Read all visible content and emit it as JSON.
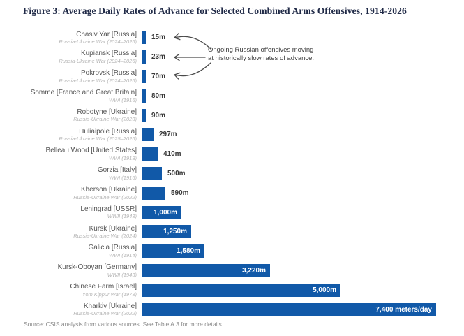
{
  "figure": {
    "title": "Figure 3: Average Daily Rates of Advance for Selected Combined Arms Offensives, 1914-2026",
    "source": "Source: CSIS analysis from various sources. See Table A.3 for more details."
  },
  "annotation": {
    "lines": [
      "Ongoing Russian offensives moving",
      "at historically slow rates of advance."
    ]
  },
  "colors": {
    "title": "#202a47",
    "bar": "#1159a8",
    "label": "#555555",
    "sublabel": "#b5b5b5",
    "value_dark": "#383838",
    "value_light": "#ffffff",
    "annotation": "#3f3f3f",
    "arrow": "#4a4a4a",
    "source": "#8c8c8c"
  },
  "chart_data": {
    "type": "bar",
    "orientation": "horizontal",
    "title": "Figure 3: Average Daily Rates of Advance for Selected Combined Arms Offensives, 1914-2026",
    "xlabel": "",
    "ylabel": "",
    "unit": "meters per day",
    "xlim": [
      0,
      7400
    ],
    "grid": false,
    "legend": false,
    "rows": [
      {
        "category": "Chasiv Yar [Russia]",
        "war": "Russia-Ukraine War (2024–2026)",
        "value": 15,
        "value_label": "15m",
        "label_inside": false
      },
      {
        "category": "Kupiansk [Russia]",
        "war": "Russia-Ukraine War (2024–2026)",
        "value": 23,
        "value_label": "23m",
        "label_inside": false
      },
      {
        "category": "Pokrovsk [Russia]",
        "war": "Russia-Ukraine War (2024–2026)",
        "value": 70,
        "value_label": "70m",
        "label_inside": false
      },
      {
        "category": "Somme [France and Great Britain]",
        "war": "WWI (1916)",
        "value": 80,
        "value_label": "80m",
        "label_inside": false
      },
      {
        "category": "Robotyne [Ukraine]",
        "war": "Russia-Ukraine War (2023)",
        "value": 90,
        "value_label": "90m",
        "label_inside": false
      },
      {
        "category": "Huliaipole [Russia]",
        "war": "Russia-Ukraine War (2025–2026)",
        "value": 297,
        "value_label": "297m",
        "label_inside": false
      },
      {
        "category": "Belleau Wood [United States]",
        "war": "WWI (1918)",
        "value": 410,
        "value_label": "410m",
        "label_inside": false
      },
      {
        "category": "Gorzia [Italy]",
        "war": "WWI (1916)",
        "value": 500,
        "value_label": "500m",
        "label_inside": false
      },
      {
        "category": "Kherson [Ukraine]",
        "war": "Russia-Ukraine War (2022)",
        "value": 590,
        "value_label": "590m",
        "label_inside": false
      },
      {
        "category": "Leningrad [USSR]",
        "war": "WWII (1943)",
        "value": 1000,
        "value_label": "1,000m",
        "label_inside": true
      },
      {
        "category": "Kursk [Ukraine]",
        "war": "Russia-Ukraine War (2024)",
        "value": 1250,
        "value_label": "1,250m",
        "label_inside": true
      },
      {
        "category": "Galicia [Russia]",
        "war": "WWI (1914)",
        "value": 1580,
        "value_label": "1,580m",
        "label_inside": true
      },
      {
        "category": "Kursk-Oboyan [Germany]",
        "war": "WWII (1943)",
        "value": 3220,
        "value_label": "3,220m",
        "label_inside": true
      },
      {
        "category": "Chinese Farm [Israel]",
        "war": "Yom Kippur War (1973)",
        "value": 5000,
        "value_label": "5,000m",
        "label_inside": true
      },
      {
        "category": "Kharkiv [Ukraine]",
        "war": "Russia-Ukraine War (2022)",
        "value": 7400,
        "value_label": "7,400 meters/day",
        "label_inside": true
      }
    ]
  }
}
